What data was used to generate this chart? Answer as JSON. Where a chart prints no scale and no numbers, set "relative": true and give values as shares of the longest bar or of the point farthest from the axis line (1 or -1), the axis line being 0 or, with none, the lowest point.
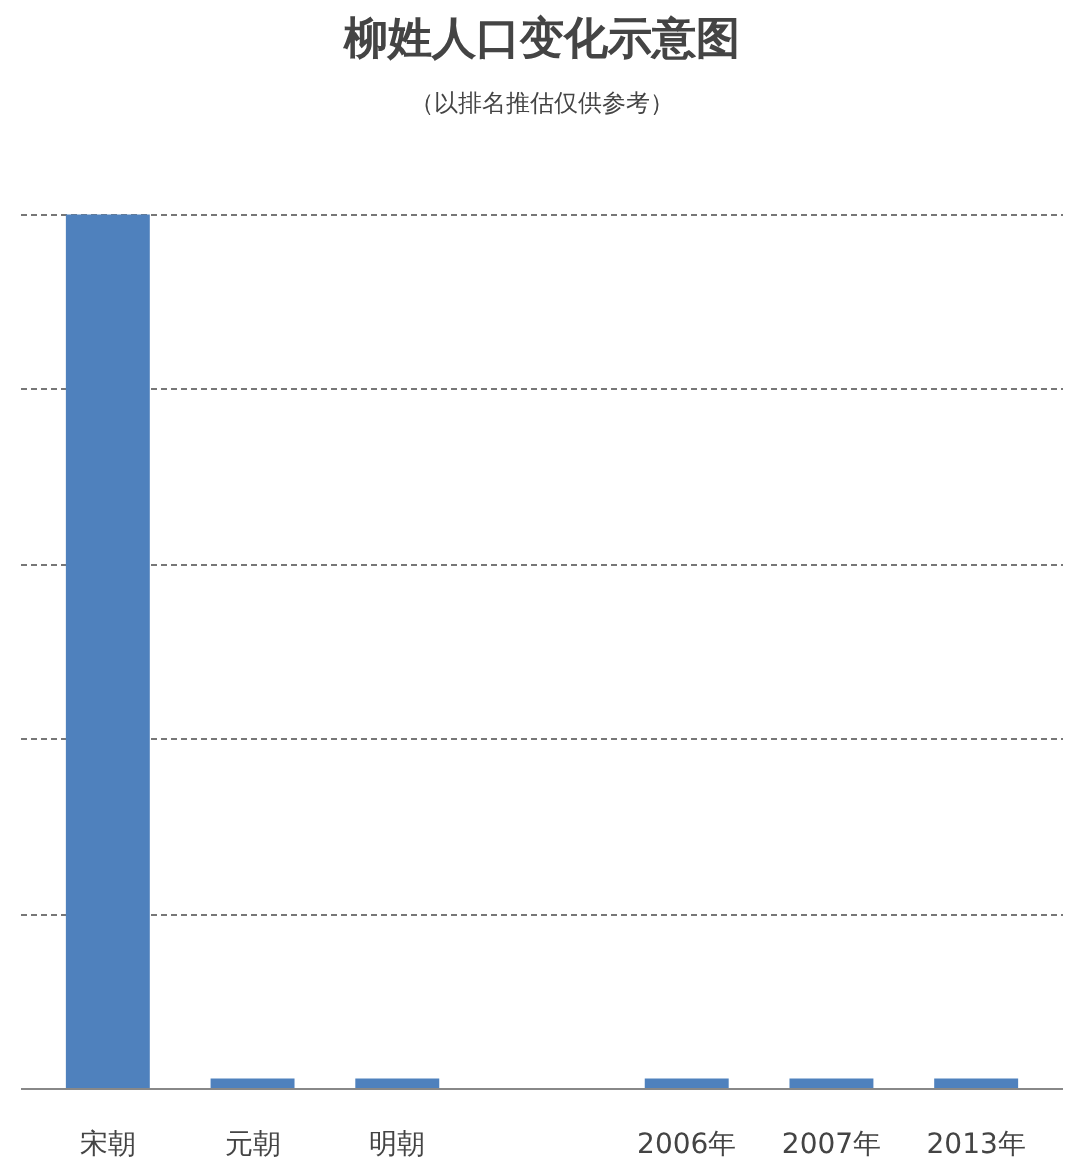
{
  "chart_data": {
    "type": "bar",
    "title": "柳姓人口变化示意图",
    "subtitle": "（以排名推估仅供参考）",
    "categories": [
      "宋朝",
      "元朝",
      "明朝",
      null,
      "2006年",
      "2007年",
      "2013年"
    ],
    "values": [
      1,
      0.012,
      0.012,
      null,
      0.012,
      0.012,
      0.012
    ],
    "color": "#4f81bd",
    "relative": true,
    "grid": "y"
  }
}
